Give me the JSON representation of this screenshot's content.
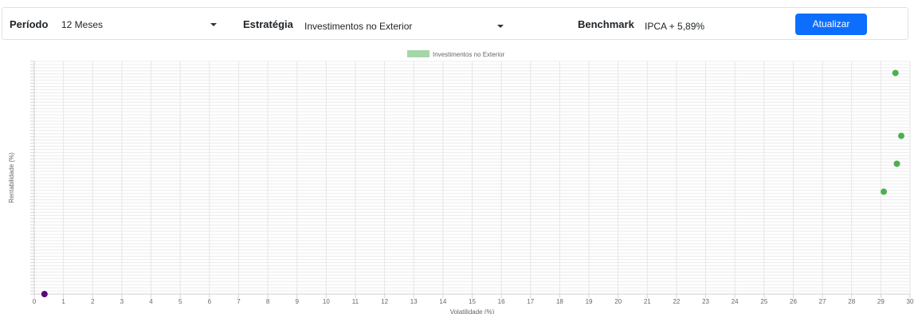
{
  "filters": {
    "period_label": "Período",
    "period_value": "12 Meses",
    "strategy_label": "Estratégia",
    "strategy_value": "Investimentos no Exterior",
    "benchmark_label": "Benchmark",
    "benchmark_value": "IPCA + 5,89%",
    "update_button": "Atualizar"
  },
  "colors": {
    "series": "#4caf50",
    "legend_swatch": "#a5d6a7",
    "benchmark_point": "#5b0a7a",
    "button": "#0d6efd"
  },
  "chart_data": {
    "type": "scatter",
    "legend": [
      "Investimentos no Exterior"
    ],
    "legend_position": "top-center",
    "xlabel": "Volatilidade (%)",
    "ylabel": "Rentabilidade (%)",
    "xlim": [
      0,
      30
    ],
    "xticks": [
      "0",
      "1",
      "2",
      "3",
      "4",
      "5",
      "6",
      "7",
      "8",
      "9",
      "10",
      "11",
      "12",
      "13",
      "14",
      "15",
      "16",
      "17",
      "18",
      "19",
      "20",
      "21",
      "22",
      "23",
      "24",
      "25",
      "26",
      "27",
      "28",
      "29",
      "30"
    ],
    "y_ticks_count": 74,
    "grid": true,
    "series": [
      {
        "name": "Investimentos no Exterior",
        "points": [
          {
            "x": 29.5,
            "y": 0.95
          },
          {
            "x": 29.7,
            "y": 0.68
          },
          {
            "x": 29.55,
            "y": 0.56
          },
          {
            "x": 29.1,
            "y": 0.44
          }
        ]
      },
      {
        "points": [
          {
            "x": 0.35,
            "y": 0.0
          }
        ]
      }
    ]
  }
}
